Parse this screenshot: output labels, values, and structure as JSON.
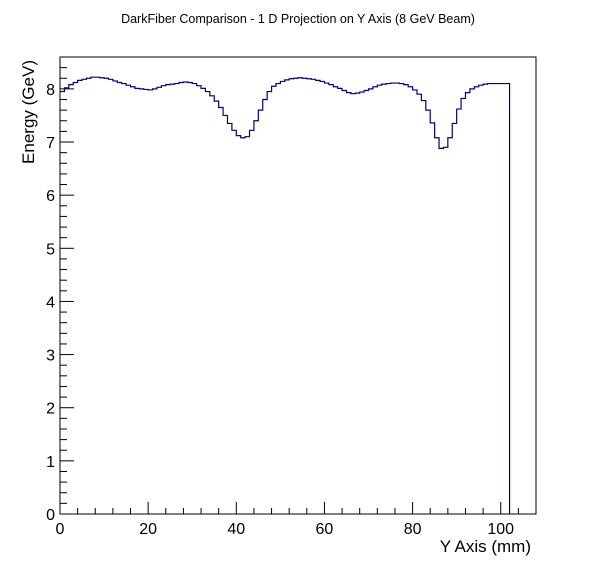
{
  "chart_data": {
    "type": "line",
    "title": "DarkFiber Comparison - 1 D Projection on Y Axis (8 GeV Beam)",
    "xlabel": "Y Axis (mm)",
    "ylabel": "Energy (GeV)",
    "xlim": [
      0,
      108
    ],
    "ylim": [
      0,
      8.6
    ],
    "xticks": [
      0,
      20,
      40,
      60,
      80,
      100
    ],
    "yticks": [
      0,
      1,
      2,
      3,
      4,
      5,
      6,
      7,
      8
    ],
    "xtick_labels": [
      "0",
      "20",
      "40",
      "60",
      "80",
      "100"
    ],
    "ytick_labels": [
      "0",
      "1",
      "2",
      "3",
      "4",
      "5",
      "6",
      "7",
      "8"
    ],
    "grid": false,
    "legend": "none",
    "line_color": "#000080",
    "bin_width": 1,
    "series": [
      {
        "x_start": 0,
        "values": [
          7.95,
          8.02,
          8.08,
          8.12,
          8.16,
          8.18,
          8.2,
          8.22,
          8.22,
          8.21,
          8.2,
          8.18,
          8.15,
          8.12,
          8.1,
          8.07,
          8.04,
          8.01,
          8.0,
          7.99,
          7.98,
          8.0,
          8.03,
          8.06,
          8.08,
          8.09,
          8.1,
          8.12,
          8.13,
          8.12,
          8.1,
          8.06,
          8.01,
          7.95,
          7.87,
          7.77,
          7.65,
          7.5,
          7.35,
          7.22,
          7.12,
          7.08,
          7.1,
          7.22,
          7.4,
          7.6,
          7.8,
          7.95,
          8.05,
          8.1,
          8.14,
          8.17,
          8.19,
          8.2,
          8.21,
          8.2,
          8.19,
          8.18,
          8.16,
          8.14,
          8.11,
          8.08,
          8.04,
          8.01,
          7.97,
          7.93,
          7.91,
          7.92,
          7.94,
          7.97,
          8.0,
          8.04,
          8.07,
          8.09,
          8.1,
          8.11,
          8.11,
          8.1,
          8.08,
          8.04,
          7.98,
          7.9,
          7.78,
          7.6,
          7.36,
          7.08,
          6.88,
          6.9,
          7.08,
          7.35,
          7.62,
          7.82,
          7.93,
          8.0,
          8.04,
          8.07,
          8.09,
          8.1,
          8.1,
          8.1,
          8.1,
          8.1
        ]
      }
    ]
  }
}
